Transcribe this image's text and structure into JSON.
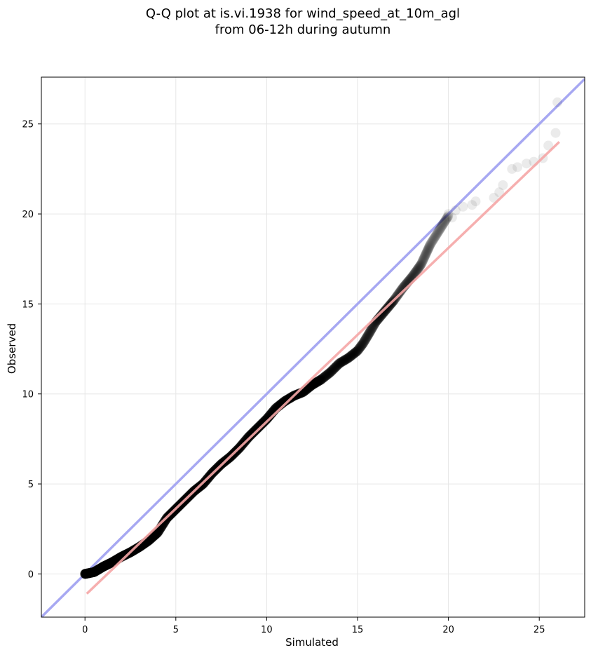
{
  "chart_data": {
    "type": "scatter",
    "title_line1": "Q-Q plot at is.vi.1938 for wind_speed_at_10m_agl",
    "title_line2": "from 06-12h during autumn",
    "xlabel": "Simulated",
    "ylabel": "Observed",
    "xlim": [
      -2.4,
      27.5
    ],
    "ylim": [
      -2.4,
      27.6
    ],
    "x_ticks": [
      0,
      5,
      10,
      15,
      20,
      25
    ],
    "y_ticks": [
      0,
      5,
      10,
      15,
      20,
      25
    ],
    "grid": true,
    "colors": {
      "points": "#000000",
      "identity_line": "#a7a8f2",
      "fit_line": "#f5a6a6",
      "grid": "#e6e6e6"
    },
    "identity_line": {
      "from": [
        -2.4,
        -2.4
      ],
      "to": [
        27.5,
        27.5
      ]
    },
    "fit_line": {
      "from": [
        0.1,
        -1.1
      ],
      "to": [
        26.1,
        24.0
      ]
    },
    "quantile_anchors": [
      [
        0.0,
        0.0
      ],
      [
        0.5,
        0.1
      ],
      [
        1.0,
        0.4
      ],
      [
        1.5,
        0.65
      ],
      [
        2.0,
        0.95
      ],
      [
        2.5,
        1.2
      ],
      [
        3.0,
        1.5
      ],
      [
        3.5,
        1.85
      ],
      [
        4.0,
        2.3
      ],
      [
        4.5,
        3.1
      ],
      [
        5.0,
        3.6
      ],
      [
        5.5,
        4.1
      ],
      [
        6.0,
        4.6
      ],
      [
        6.5,
        5.0
      ],
      [
        7.0,
        5.6
      ],
      [
        7.5,
        6.1
      ],
      [
        8.0,
        6.5
      ],
      [
        8.5,
        7.0
      ],
      [
        9.0,
        7.6
      ],
      [
        9.5,
        8.1
      ],
      [
        10.0,
        8.6
      ],
      [
        10.5,
        9.2
      ],
      [
        11.0,
        9.6
      ],
      [
        11.5,
        9.9
      ],
      [
        12.0,
        10.1
      ],
      [
        12.5,
        10.5
      ],
      [
        13.0,
        10.8
      ],
      [
        13.5,
        11.2
      ],
      [
        14.0,
        11.7
      ],
      [
        14.5,
        12.0
      ],
      [
        15.0,
        12.4
      ],
      [
        15.3,
        12.8
      ],
      [
        15.6,
        13.3
      ],
      [
        16.0,
        14.0
      ],
      [
        16.5,
        14.6
      ],
      [
        17.0,
        15.2
      ],
      [
        17.5,
        15.9
      ],
      [
        18.0,
        16.5
      ],
      [
        18.5,
        17.2
      ],
      [
        19.0,
        18.3
      ],
      [
        19.5,
        19.1
      ],
      [
        20.0,
        19.9
      ]
    ],
    "n_points": 1400,
    "tail_points": [
      [
        20.0,
        20.0
      ],
      [
        20.2,
        19.8
      ],
      [
        20.4,
        20.2
      ],
      [
        20.8,
        20.4
      ],
      [
        21.3,
        20.5
      ],
      [
        21.5,
        20.7
      ],
      [
        22.5,
        20.9
      ],
      [
        22.8,
        21.2
      ],
      [
        23.0,
        21.6
      ],
      [
        23.5,
        22.5
      ],
      [
        23.8,
        22.6
      ],
      [
        24.3,
        22.8
      ],
      [
        24.7,
        22.9
      ],
      [
        25.2,
        23.1
      ],
      [
        25.5,
        23.8
      ],
      [
        25.9,
        24.5
      ],
      [
        26.0,
        26.2
      ]
    ]
  }
}
